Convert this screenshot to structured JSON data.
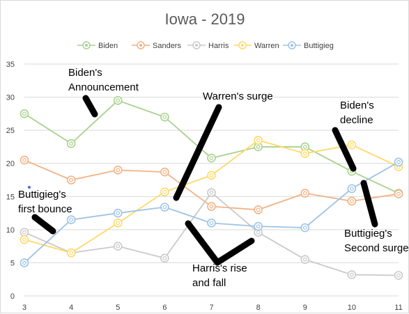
{
  "chart_data": {
    "type": "line",
    "title": "Iowa - 2019",
    "x": [
      3,
      4,
      5,
      6,
      7,
      8,
      9,
      10,
      11
    ],
    "xlim": [
      3,
      11
    ],
    "ylim": [
      0,
      35
    ],
    "yticks": [
      0,
      5,
      10,
      15,
      20,
      25,
      30,
      35
    ],
    "grid": "horizontal",
    "legend": "top",
    "series": [
      {
        "name": "Biden",
        "color": "#a9d18e",
        "values": [
          27.5,
          23,
          29.5,
          27,
          20.8,
          22.5,
          22.5,
          18.8,
          15.5
        ]
      },
      {
        "name": "Sanders",
        "color": "#f4b183",
        "values": [
          20.5,
          17.5,
          19,
          18.7,
          13.5,
          13,
          15.5,
          14.3,
          15.4
        ]
      },
      {
        "name": "Harris",
        "color": "#c9c9c9",
        "values": [
          9.6,
          6.5,
          7.5,
          5.7,
          15.6,
          9.6,
          5.5,
          3.2,
          3.1
        ]
      },
      {
        "name": "Warren",
        "color": "#ffd966",
        "values": [
          8.5,
          6.5,
          11,
          15.7,
          18.2,
          23.5,
          21.5,
          22.8,
          19.5
        ]
      },
      {
        "name": "Buttigieg",
        "color": "#9dc3e6",
        "values": [
          5,
          11.5,
          12.5,
          13.4,
          11,
          10.5,
          10.3,
          16.2,
          20.2
        ]
      }
    ],
    "annotations": [
      {
        "id": "biden-announcement",
        "lines": [
          "Biden's",
          "Announcement"
        ]
      },
      {
        "id": "warren-surge",
        "lines": [
          "Warren's surge"
        ]
      },
      {
        "id": "biden-decline",
        "lines": [
          "Biden's",
          "decline"
        ]
      },
      {
        "id": "buttigieg-first",
        "lines": [
          "Buttigieg's",
          "first bounce"
        ]
      },
      {
        "id": "harris-rise",
        "lines": [
          "Harris's rise",
          "and fall"
        ]
      },
      {
        "id": "buttigieg-second",
        "lines": [
          "Buttigieg's",
          "Second surge"
        ]
      }
    ]
  }
}
